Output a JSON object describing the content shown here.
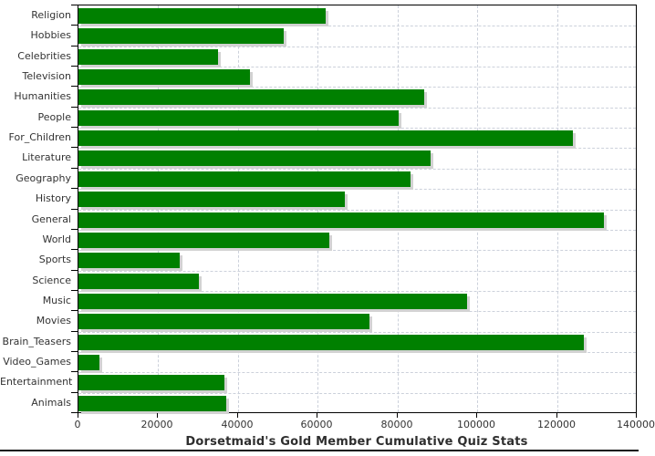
{
  "chart_data": {
    "type": "bar",
    "orientation": "horizontal",
    "title": "Dorsetmaid's Gold Member Cumulative Quiz Stats",
    "categories": [
      "Religion",
      "Hobbies",
      "Celebrities",
      "Television",
      "Humanities",
      "People",
      "For_Children",
      "Literature",
      "Geography",
      "History",
      "General",
      "World",
      "Sports",
      "Science",
      "Music",
      "Movies",
      "Brain_Teasers",
      "Video_Games",
      "Entertainment",
      "Animals"
    ],
    "values": [
      62100,
      51400,
      35000,
      42900,
      86700,
      80300,
      124000,
      88400,
      83200,
      66900,
      131800,
      62800,
      25300,
      30100,
      97400,
      73000,
      126800,
      5300,
      36600,
      37000
    ],
    "xlabel": "",
    "ylabel": "",
    "xlim": [
      0,
      140000
    ],
    "x_ticks": [
      0,
      20000,
      40000,
      60000,
      80000,
      100000,
      120000,
      140000
    ],
    "grid": "dashed",
    "legend": "none",
    "colors": {
      "bar": "#008000",
      "bar_shadow": "#d2d2d2",
      "gridline": "#ccd1db",
      "axis": "#000000",
      "text": "#333333"
    }
  }
}
